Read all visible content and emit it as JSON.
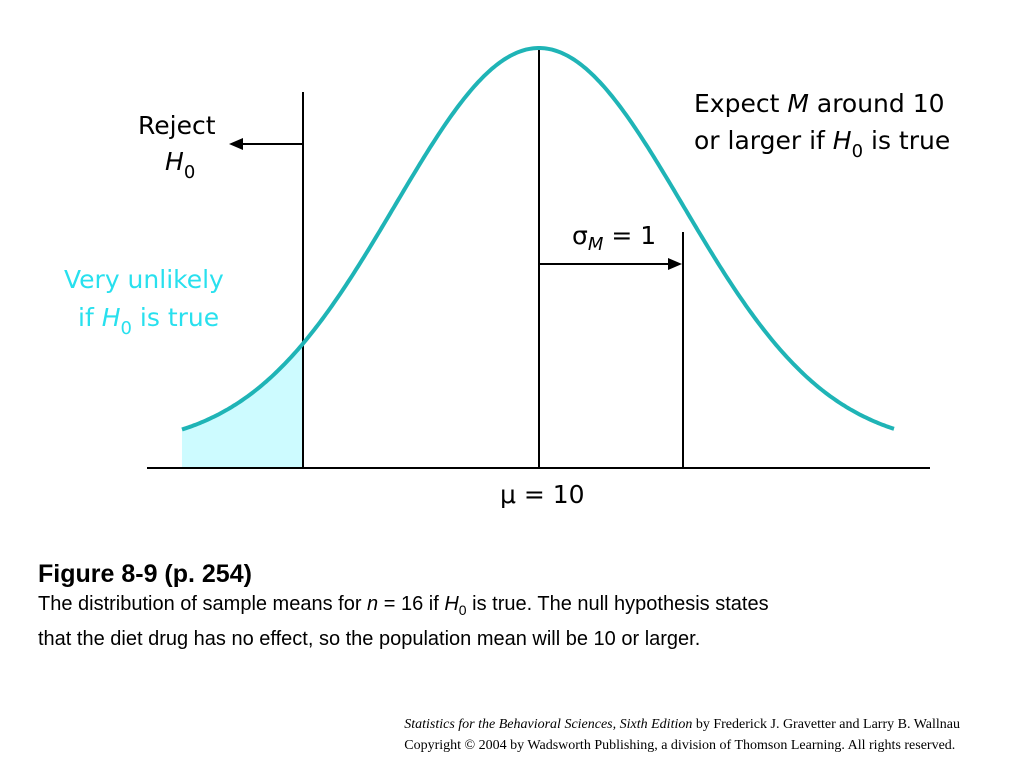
{
  "colors": {
    "curve": "#1fb4b6",
    "highlight": "#28e0ee",
    "tail_fill": "#cdfbff",
    "ink": "#000000"
  },
  "figure": {
    "reject_label": {
      "line1": "Reject",
      "symbol": "H",
      "subscript": "0"
    },
    "unlikely_label": {
      "line1": "Very unlikely",
      "prefix": "if ",
      "symbol": "H",
      "subscript": "0",
      "suffix": " is true"
    },
    "expect_label": {
      "line1_a": "Expect ",
      "line1_b": "M",
      "line1_c": " around 10",
      "line2_a": "or larger if ",
      "line2_b": "H",
      "line2_c": "0",
      "line2_d": " is true"
    },
    "sigma_label": {
      "symbol": "σ",
      "subscript": "M",
      "rest": " = 1"
    },
    "mu_label": "μ = 10"
  },
  "caption": {
    "title": "Figure 8-9  (p. 254)",
    "line1_a": "The distribution of sample means for ",
    "line1_n": "n",
    "line1_b": " = 16 if ",
    "line1_h": "H",
    "line1_sub": "0",
    "line1_c": " is true. The null hypothesis states",
    "line2": "that the diet drug has no effect, so the population mean will be 10 or larger."
  },
  "footer": {
    "book_title": "Statistics for the Behavioral Sciences, Sixth Edition",
    "authors": " by Frederick J. Gravetter and Larry B. Wallnau",
    "copyright": "Copyright © 2004 by Wadsworth Publishing, a division of Thomson Learning.  All rights reserved."
  }
}
